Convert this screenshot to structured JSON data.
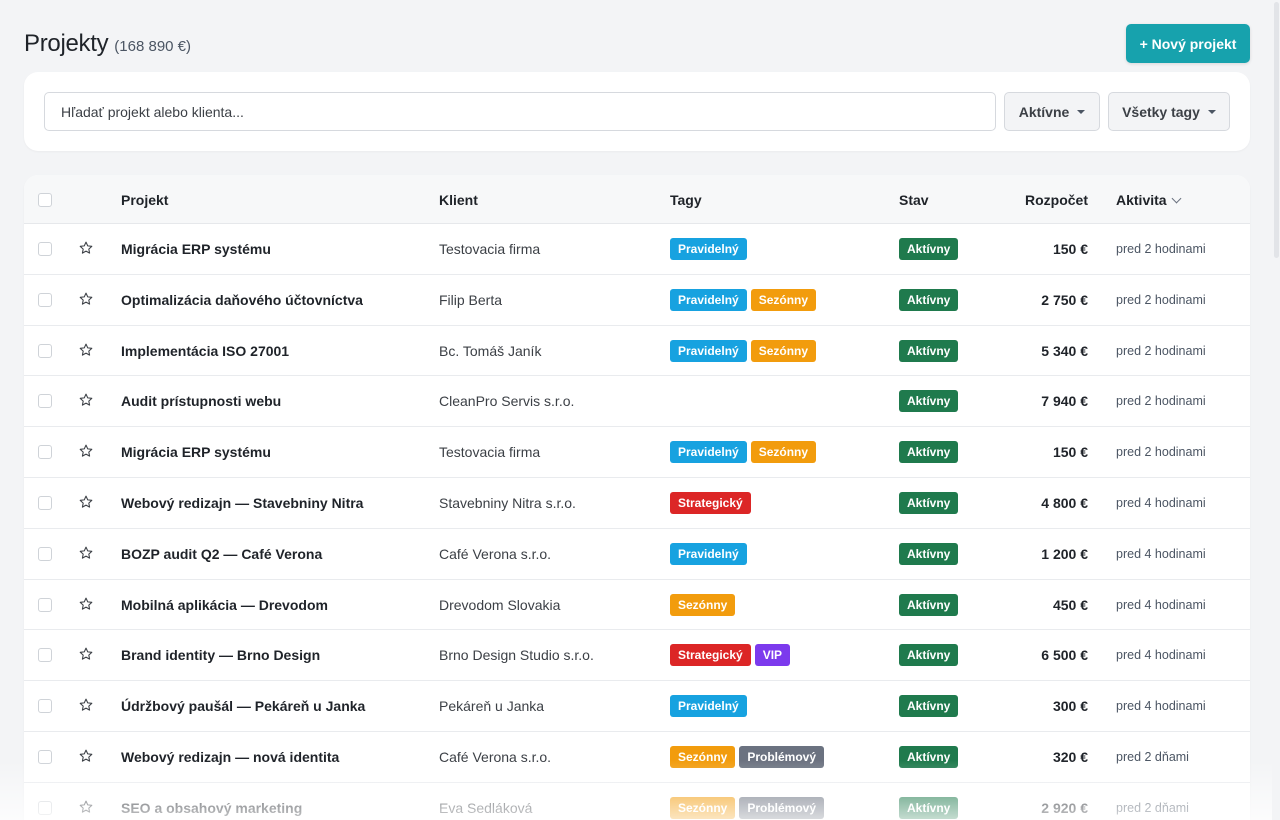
{
  "header": {
    "title": "Projekty",
    "total": "(168 890 €)",
    "new_button": "+ Nový projekt"
  },
  "filters": {
    "search_placeholder": "Hľadať projekt alebo klienta...",
    "status_select": "Aktívne",
    "tags_select": "Všetky tagy"
  },
  "table": {
    "columns": {
      "project": "Projekt",
      "client": "Klient",
      "tags": "Tagy",
      "status": "Stav",
      "budget": "Rozpočet",
      "activity": "Aktivita"
    },
    "tag_colors": {
      "Pravidelný": "#17a2e0",
      "Sezónny": "#f29c0d",
      "Strategický": "#dc2626",
      "VIP": "#7c3aed",
      "Problémový": "#6b7280"
    },
    "status_color": "#1f7a4d",
    "rows": [
      {
        "name": "Migrácia ERP systému",
        "client": "Testovacia firma",
        "tags": [
          "Pravidelný"
        ],
        "status": "Aktívny",
        "budget": "150 €",
        "activity": "pred 2 hodinami"
      },
      {
        "name": "Optimalizácia daňového účtovníctva",
        "client": "Filip Berta",
        "tags": [
          "Pravidelný",
          "Sezónny"
        ],
        "status": "Aktívny",
        "budget": "2 750 €",
        "activity": "pred 2 hodinami"
      },
      {
        "name": "Implementácia ISO 27001",
        "client": "Bc. Tomáš Janík",
        "tags": [
          "Pravidelný",
          "Sezónny"
        ],
        "status": "Aktívny",
        "budget": "5 340 €",
        "activity": "pred 2 hodinami"
      },
      {
        "name": "Audit prístupnosti webu",
        "client": "CleanPro Servis s.r.o.",
        "tags": [],
        "status": "Aktívny",
        "budget": "7 940 €",
        "activity": "pred 2 hodinami"
      },
      {
        "name": "Migrácia ERP systému",
        "client": "Testovacia firma",
        "tags": [
          "Pravidelný",
          "Sezónny"
        ],
        "status": "Aktívny",
        "budget": "150 €",
        "activity": "pred 2 hodinami"
      },
      {
        "name": "Webový redizajn — Stavebniny Nitra",
        "client": "Stavebniny Nitra s.r.o.",
        "tags": [
          "Strategický"
        ],
        "status": "Aktívny",
        "budget": "4 800 €",
        "activity": "pred 4 hodinami"
      },
      {
        "name": "BOZP audit Q2 — Café Verona",
        "client": "Café Verona s.r.o.",
        "tags": [
          "Pravidelný"
        ],
        "status": "Aktívny",
        "budget": "1 200 €",
        "activity": "pred 4 hodinami"
      },
      {
        "name": "Mobilná aplikácia — Drevodom",
        "client": "Drevodom Slovakia",
        "tags": [
          "Sezónny"
        ],
        "status": "Aktívny",
        "budget": "450 €",
        "activity": "pred 4 hodinami"
      },
      {
        "name": "Brand identity — Brno Design",
        "client": "Brno Design Studio s.r.o.",
        "tags": [
          "Strategický",
          "VIP"
        ],
        "status": "Aktívny",
        "budget": "6 500 €",
        "activity": "pred 4 hodinami"
      },
      {
        "name": "Údržbový paušál — Pekáreň u Janka",
        "client": "Pekáreň u Janka",
        "tags": [
          "Pravidelný"
        ],
        "status": "Aktívny",
        "budget": "300 €",
        "activity": "pred 4 hodinami"
      },
      {
        "name": "Webový redizajn — nová identita",
        "client": "Café Verona s.r.o.",
        "tags": [
          "Sezónny",
          "Problémový"
        ],
        "status": "Aktívny",
        "budget": "320 €",
        "activity": "pred 2 dňami"
      },
      {
        "name": "SEO a obsahový marketing",
        "client": "Eva Sedláková",
        "tags": [
          "Sezónny",
          "Problémový"
        ],
        "status": "Aktívny",
        "budget": "2 920 €",
        "activity": "pred 2 dňami"
      }
    ]
  }
}
